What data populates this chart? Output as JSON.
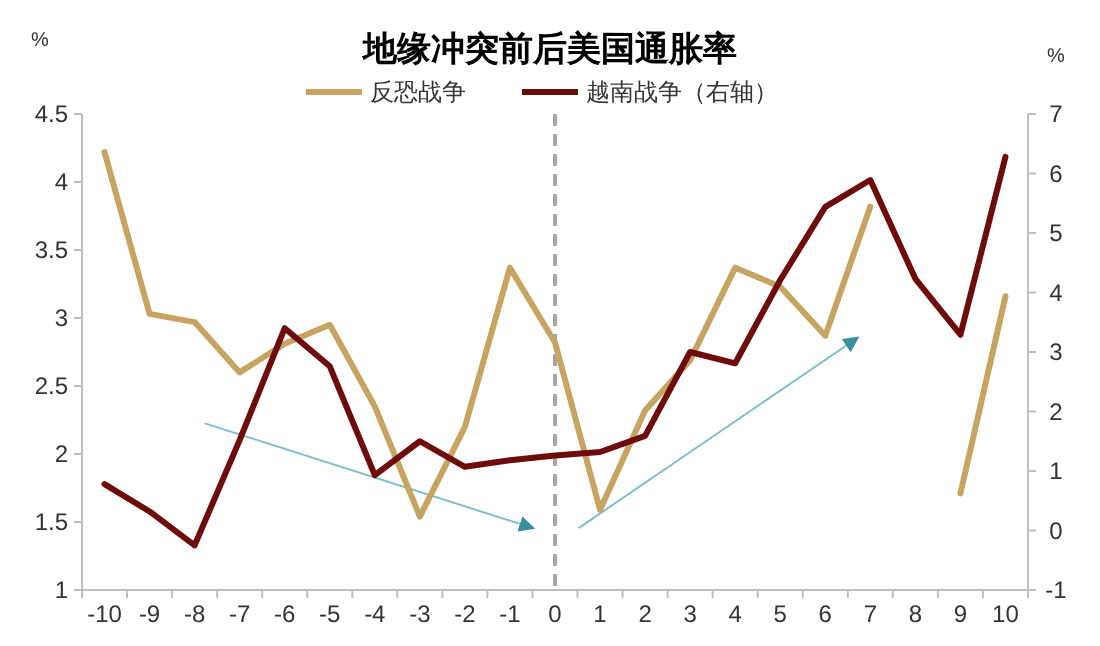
{
  "chart_data": {
    "type": "line",
    "title": "地缘冲突前后美国通胀率",
    "ylabel": "%",
    "y2label": "%",
    "categories": [
      "-10",
      "-9",
      "-8",
      "-7",
      "-6",
      "-5",
      "-4",
      "-3",
      "-2",
      "-1",
      "0",
      "1",
      "2",
      "3",
      "4",
      "5",
      "6",
      "7",
      "8",
      "9",
      "10"
    ],
    "series": [
      {
        "name": "反恐战争",
        "color": "#c8a463",
        "values": [
          4.22,
          3.03,
          2.97,
          2.6,
          2.81,
          2.95,
          2.35,
          1.54,
          2.2,
          3.37,
          2.82,
          1.59,
          2.32,
          2.69,
          3.37,
          3.23,
          2.87,
          3.82,
          null,
          1.71,
          3.16
        ]
      },
      {
        "name": "越南战争（右轴）",
        "color": "#6e0b0b",
        "axis": "y2",
        "values": [
          0.78,
          0.32,
          -0.25,
          1.52,
          3.4,
          2.76,
          0.93,
          1.5,
          1.07,
          1.18,
          1.26,
          1.32,
          1.59,
          3.0,
          2.81,
          4.21,
          5.44,
          5.89,
          4.23,
          3.29,
          6.28
        ]
      }
    ],
    "ylim": [
      1,
      4.5
    ],
    "yticks": [
      1,
      1.5,
      2,
      2.5,
      3,
      3.5,
      4,
      4.5
    ],
    "y2lim": [
      -1,
      7
    ],
    "y2ticks": [
      -1,
      0,
      1,
      2,
      3,
      4,
      5,
      6,
      7
    ],
    "ref_lines": [
      {
        "axis": "x",
        "value": "0",
        "color": "#a6a6a6",
        "line_style": "dashed"
      }
    ],
    "legend": "top",
    "grid": false,
    "marker": "none",
    "line_style": "solid"
  }
}
